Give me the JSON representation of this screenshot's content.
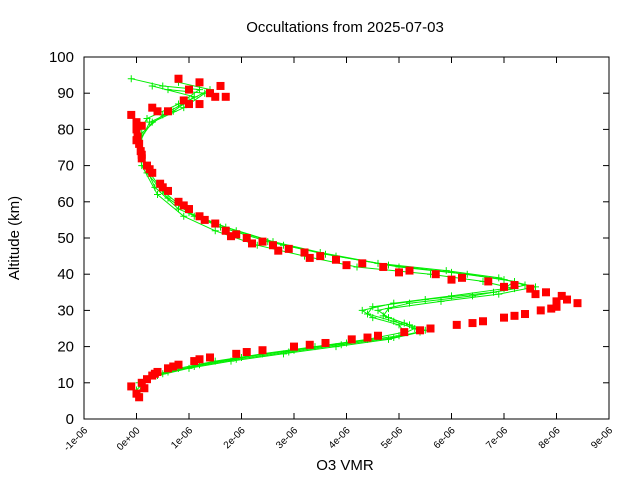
{
  "chart_data": {
    "type": "scatter",
    "title": "Occultations from 2025-07-03",
    "xlabel": "O3 VMR",
    "ylabel": "Altitude (km)",
    "xlim": [
      -1e-06,
      9e-06
    ],
    "ylim": [
      0,
      100
    ],
    "xticks": [
      "-1e-06",
      "0e+00",
      "1e-06",
      "2e-06",
      "3e-06",
      "4e-06",
      "5e-06",
      "6e-06",
      "7e-06",
      "8e-06",
      "9e-06"
    ],
    "yticks": [
      "0",
      "10",
      "20",
      "30",
      "40",
      "50",
      "60",
      "70",
      "80",
      "90",
      "100"
    ],
    "grid": false,
    "colors": {
      "series_green": "#00ee00",
      "series_red": "#ff0000"
    },
    "series": [
      {
        "marker": "plus",
        "color": "#00ee00",
        "connected": true,
        "profiles": [
          [
            [
              5e-08,
              7
            ],
            [
              1e-07,
              10
            ],
            [
              4e-07,
              12
            ],
            [
              1e-06,
              14
            ],
            [
              1.8e-06,
              16
            ],
            [
              2.8e-06,
              18
            ],
            [
              3.8e-06,
              20
            ],
            [
              4.8e-06,
              22
            ],
            [
              5.4e-06,
              24
            ],
            [
              5.2e-06,
              26
            ],
            [
              4.8e-06,
              28
            ],
            [
              4.6e-06,
              30
            ],
            [
              5.2e-06,
              32
            ],
            [
              6.4e-06,
              34
            ],
            [
              7.2e-06,
              36
            ],
            [
              6.6e-06,
              38
            ],
            [
              5.6e-06,
              40
            ],
            [
              4.2e-06,
              42
            ],
            [
              3.2e-06,
              45
            ],
            [
              2.3e-06,
              48
            ],
            [
              1.5e-06,
              52
            ],
            [
              9e-07,
              56
            ],
            [
              4e-07,
              62
            ],
            [
              1e-07,
              70
            ],
            [
              0.0,
              78
            ],
            [
              2e-07,
              83
            ],
            [
              8e-07,
              87
            ],
            [
              1.2e-06,
              91
            ],
            [
              5e-07,
              92
            ],
            [
              -1e-07,
              94
            ]
          ],
          [
            [
              0.0,
              8
            ],
            [
              2e-07,
              11
            ],
            [
              6e-07,
              13
            ],
            [
              1.2e-06,
              15
            ],
            [
              2e-06,
              17
            ],
            [
              3e-06,
              19
            ],
            [
              4e-06,
              21
            ],
            [
              5e-06,
              23
            ],
            [
              5.3e-06,
              25
            ],
            [
              4.9e-06,
              27
            ],
            [
              4.4e-06,
              29
            ],
            [
              4.5e-06,
              31
            ],
            [
              5.5e-06,
              33
            ],
            [
              6.8e-06,
              35
            ],
            [
              7.4e-06,
              37
            ],
            [
              6.9e-06,
              39
            ],
            [
              5.9e-06,
              41
            ],
            [
              4.6e-06,
              43
            ],
            [
              3.5e-06,
              46
            ],
            [
              2.6e-06,
              49
            ],
            [
              1.7e-06,
              53
            ],
            [
              1e-06,
              57
            ],
            [
              5e-07,
              63
            ],
            [
              1.5e-07,
              70
            ],
            [
              5e-08,
              77
            ],
            [
              3e-07,
              82
            ],
            [
              9e-07,
              86
            ],
            [
              1.3e-06,
              90
            ],
            [
              6e-07,
              91
            ]
          ],
          [
            [
              1e-07,
              9
            ],
            [
              3e-07,
              12
            ],
            [
              8e-07,
              14
            ],
            [
              1.5e-06,
              16
            ],
            [
              2.4e-06,
              18
            ],
            [
              3.4e-06,
              20
            ],
            [
              4.4e-06,
              22
            ],
            [
              5.1e-06,
              24
            ],
            [
              5e-06,
              26
            ],
            [
              4.5e-06,
              28
            ],
            [
              4.3e-06,
              30
            ],
            [
              4.9e-06,
              32
            ],
            [
              6e-06,
              34
            ],
            [
              7e-06,
              36
            ],
            [
              7.2e-06,
              38
            ],
            [
              6.3e-06,
              40
            ],
            [
              5e-06,
              42
            ],
            [
              3.8e-06,
              45
            ],
            [
              2.8e-06,
              48
            ],
            [
              1.9e-06,
              52
            ],
            [
              1.1e-06,
              56
            ],
            [
              6e-07,
              61
            ],
            [
              2e-07,
              68
            ],
            [
              5e-08,
              76
            ],
            [
              2.5e-07,
              82
            ],
            [
              7e-07,
              85
            ],
            [
              1.1e-06,
              89
            ],
            [
              3e-07,
              92
            ]
          ],
          [
            [
              5e-08,
              10
            ],
            [
              5e-07,
              12.5
            ],
            [
              1.1e-06,
              14.5
            ],
            [
              1.9e-06,
              16.5
            ],
            [
              2.9e-06,
              18.5
            ],
            [
              3.9e-06,
              20.5
            ],
            [
              4.9e-06,
              22.5
            ],
            [
              5.5e-06,
              24.5
            ],
            [
              5.1e-06,
              26.5
            ],
            [
              4.7e-06,
              28.5
            ],
            [
              4.8e-06,
              30.5
            ],
            [
              5.8e-06,
              32.5
            ],
            [
              6.9e-06,
              34.5
            ],
            [
              7.6e-06,
              36.5
            ],
            [
              7e-06,
              38.5
            ],
            [
              6e-06,
              40.5
            ],
            [
              4.8e-06,
              42.5
            ],
            [
              3.6e-06,
              45.5
            ],
            [
              2.5e-06,
              49
            ],
            [
              1.6e-06,
              53
            ],
            [
              8e-07,
              58
            ],
            [
              3.5e-07,
              64
            ],
            [
              1e-07,
              72
            ],
            [
              1e-07,
              79
            ],
            [
              5e-07,
              84
            ],
            [
              1e-06,
              88
            ],
            [
              1.4e-06,
              91
            ],
            [
              8e-07,
              93
            ]
          ]
        ]
      },
      {
        "marker": "square",
        "color": "#ff0000",
        "connected": false,
        "profiles": [
          [
            [
              -1e-07,
              9
            ],
            [
              2e-07,
              11
            ],
            [
              4e-07,
              13
            ],
            [
              8e-07,
              15
            ],
            [
              1.4e-06,
              17
            ],
            [
              2.4e-06,
              19
            ],
            [
              3.6e-06,
              21
            ],
            [
              4.6e-06,
              23
            ],
            [
              5.6e-06,
              25
            ],
            [
              6.6e-06,
              27
            ],
            [
              7.4e-06,
              29
            ],
            [
              8e-06,
              31
            ],
            [
              8.2e-06,
              33
            ],
            [
              7.8e-06,
              35
            ],
            [
              7.2e-06,
              37
            ],
            [
              6.2e-06,
              39
            ],
            [
              5.2e-06,
              41
            ],
            [
              4.3e-06,
              43
            ],
            [
              3.5e-06,
              45
            ],
            [
              2.9e-06,
              47
            ],
            [
              2.4e-06,
              49
            ],
            [
              1.9e-06,
              51
            ],
            [
              1.5e-06,
              54
            ],
            [
              1e-06,
              58
            ],
            [
              6e-07,
              63
            ],
            [
              3e-07,
              68
            ],
            [
              1e-07,
              72
            ],
            [
              5e-08,
              76
            ],
            [
              0.0,
              80
            ],
            [
              -1e-07,
              84
            ],
            [
              3e-07,
              86
            ],
            [
              9e-07,
              88
            ],
            [
              1.4e-06,
              90
            ],
            [
              1.6e-06,
              92
            ]
          ],
          [
            [
              0.0,
              7
            ],
            [
              1e-07,
              10
            ],
            [
              3e-07,
              12
            ],
            [
              6e-07,
              14
            ],
            [
              1.1e-06,
              16
            ],
            [
              1.9e-06,
              18
            ],
            [
              3e-06,
              20
            ],
            [
              4.1e-06,
              22
            ],
            [
              5.1e-06,
              24
            ],
            [
              6.1e-06,
              26
            ],
            [
              7e-06,
              28
            ],
            [
              7.7e-06,
              30
            ],
            [
              8.4e-06,
              32
            ],
            [
              8.1e-06,
              34
            ],
            [
              7.5e-06,
              36
            ],
            [
              6.7e-06,
              38
            ],
            [
              5.7e-06,
              40
            ],
            [
              4.7e-06,
              42
            ],
            [
              3.8e-06,
              44
            ],
            [
              3.2e-06,
              46
            ],
            [
              2.6e-06,
              48
            ],
            [
              2.1e-06,
              50
            ],
            [
              1.7e-06,
              52
            ],
            [
              1.2e-06,
              56
            ],
            [
              8e-07,
              60
            ],
            [
              4.5e-07,
              65
            ],
            [
              2e-07,
              70
            ],
            [
              8e-08,
              74
            ],
            [
              2e-08,
              78
            ],
            [
              0.0,
              82
            ],
            [
              4e-07,
              85
            ],
            [
              1e-06,
              87
            ],
            [
              1.5e-06,
              89
            ],
            [
              1.2e-06,
              93
            ]
          ],
          [
            [
              5e-08,
              6
            ],
            [
              1.5e-07,
              8.5
            ],
            [
              3.5e-07,
              12.5
            ],
            [
              7e-07,
              14.5
            ],
            [
              1.2e-06,
              16.5
            ],
            [
              2.1e-06,
              18.5
            ],
            [
              3.3e-06,
              20.5
            ],
            [
              4.4e-06,
              22.5
            ],
            [
              5.4e-06,
              24.5
            ],
            [
              6.4e-06,
              26.5
            ],
            [
              7.2e-06,
              28.5
            ],
            [
              7.9e-06,
              30.5
            ],
            [
              8e-06,
              32.5
            ],
            [
              7.6e-06,
              34.5
            ],
            [
              7e-06,
              36.5
            ],
            [
              6e-06,
              38.5
            ],
            [
              5e-06,
              40.5
            ],
            [
              4e-06,
              42.5
            ],
            [
              3.3e-06,
              44.5
            ],
            [
              2.7e-06,
              46.5
            ],
            [
              2.2e-06,
              48.5
            ],
            [
              1.8e-06,
              50.5
            ],
            [
              1.3e-06,
              55
            ],
            [
              9e-07,
              59
            ],
            [
              5e-07,
              64
            ],
            [
              2.5e-07,
              69
            ],
            [
              1e-07,
              73
            ],
            [
              0.0,
              77
            ],
            [
              1e-07,
              81
            ],
            [
              6e-07,
              85
            ],
            [
              1.2e-06,
              87
            ],
            [
              1.7e-06,
              89
            ],
            [
              1e-06,
              91
            ],
            [
              8e-07,
              94
            ]
          ]
        ]
      }
    ]
  }
}
